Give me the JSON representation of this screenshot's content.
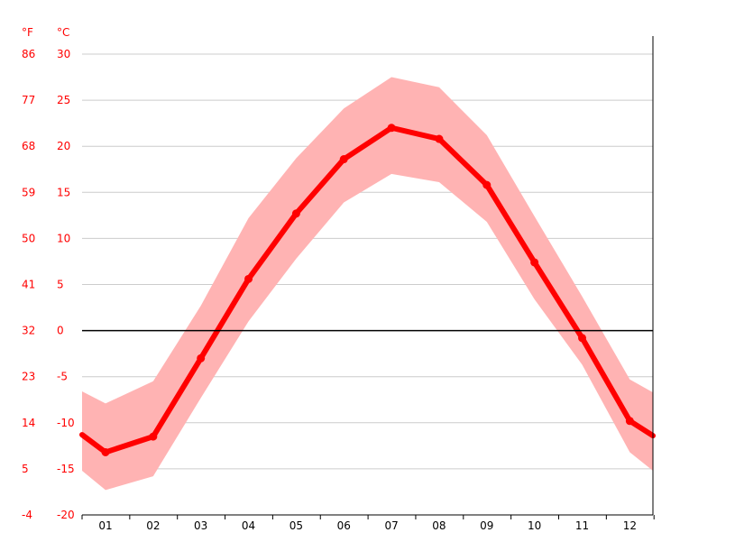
{
  "chart_data": {
    "type": "line",
    "title": "",
    "xlabel": "",
    "ylabel": "",
    "unit_left": "°F",
    "unit_right": "°C",
    "categories": [
      "01",
      "02",
      "03",
      "04",
      "05",
      "06",
      "07",
      "08",
      "09",
      "10",
      "11",
      "12"
    ],
    "ylim": [
      -20,
      30
    ],
    "y_ticks_c": [
      30,
      25,
      20,
      15,
      10,
      5,
      0,
      -5,
      -10,
      -15,
      -20
    ],
    "y_ticks_f": [
      86,
      77,
      68,
      59,
      50,
      41,
      32,
      23,
      14,
      5,
      -4
    ],
    "grid": true,
    "series": [
      {
        "role": "avg",
        "values": [
          -13.2,
          -11.5,
          -3.0,
          5.6,
          12.7,
          18.6,
          22.0,
          20.8,
          15.8,
          7.4,
          -0.8,
          -9.8
        ],
        "edge_values": [
          -11.3,
          -11.4
        ]
      },
      {
        "role": "max",
        "values": [
          -7.9,
          -5.5,
          2.7,
          12.2,
          18.7,
          24.1,
          27.5,
          26.4,
          21.2,
          12.4,
          3.7,
          -5.3
        ],
        "edge_values": [
          -6.6,
          -6.7
        ]
      },
      {
        "role": "min",
        "values": [
          -17.3,
          -15.8,
          -7.3,
          1.0,
          7.8,
          13.9,
          17.0,
          16.1,
          11.8,
          3.4,
          -3.7,
          -13.2
        ],
        "edge_values": [
          -15.2,
          -15.2
        ]
      }
    ],
    "colors": {
      "line": "#ff0000",
      "band": "#ffb3b3",
      "grid": "#cccccc",
      "zero": "#000000",
      "axis": "#000000",
      "tick_label_y": "#ff0000",
      "tick_label_x": "#000000"
    }
  }
}
